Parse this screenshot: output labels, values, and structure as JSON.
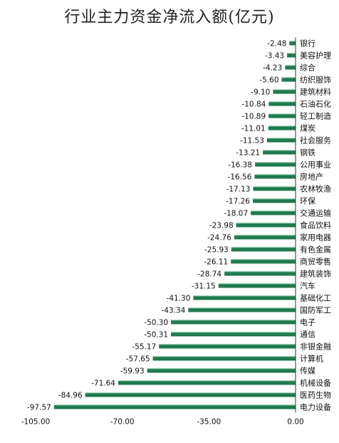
{
  "chart_data": {
    "type": "bar",
    "orientation": "horizontal",
    "title": "行业主力资金净流入额(亿元)",
    "xlim": [
      -105,
      0
    ],
    "xticks": [
      "-105.00",
      "-70.00",
      "-35.00",
      "0.00"
    ],
    "xtick_values": [
      -105,
      -70,
      -35,
      0
    ],
    "bar_color": "#1f7a4f",
    "categories": [
      "银行",
      "美容护理",
      "综合",
      "纺织服饰",
      "建筑材料",
      "石油石化",
      "轻工制造",
      "煤炭",
      "社会服务",
      "钢铁",
      "公用事业",
      "房地产",
      "农林牧渔",
      "环保",
      "交通运输",
      "食品饮料",
      "家用电器",
      "有色金属",
      "商贸零售",
      "建筑装饰",
      "汽车",
      "基础化工",
      "国防军工",
      "电子",
      "通信",
      "非银金融",
      "计算机",
      "传媒",
      "机械设备",
      "医药生物",
      "电力设备"
    ],
    "values": [
      -2.48,
      -3.43,
      -4.23,
      -5.6,
      -9.1,
      -10.84,
      -10.89,
      -11.01,
      -11.53,
      -13.21,
      -16.38,
      -16.56,
      -17.13,
      -17.26,
      -18.07,
      -23.98,
      -24.76,
      -25.93,
      -26.11,
      -28.74,
      -31.15,
      -41.3,
      -43.34,
      -50.3,
      -50.31,
      -55.17,
      -57.65,
      -59.93,
      -71.64,
      -84.96,
      -97.57
    ],
    "value_labels": [
      "-2.48",
      "-3.43",
      "-4.23",
      "-5.60",
      "-9.10",
      "-10.84",
      "-10.89",
      "-11.01",
      "-11.53",
      "-13.21",
      "-16.38",
      "-16.56",
      "-17.13",
      "-17.26",
      "-18.07",
      "-23.98",
      "-24.76",
      "-25.93",
      "-26.11",
      "-28.74",
      "-31.15",
      "-41.30",
      "-43.34",
      "-50.30",
      "-50.31",
      "-55.17",
      "-57.65",
      "-59.93",
      "-71.64",
      "-84.96",
      "-97.57"
    ]
  }
}
